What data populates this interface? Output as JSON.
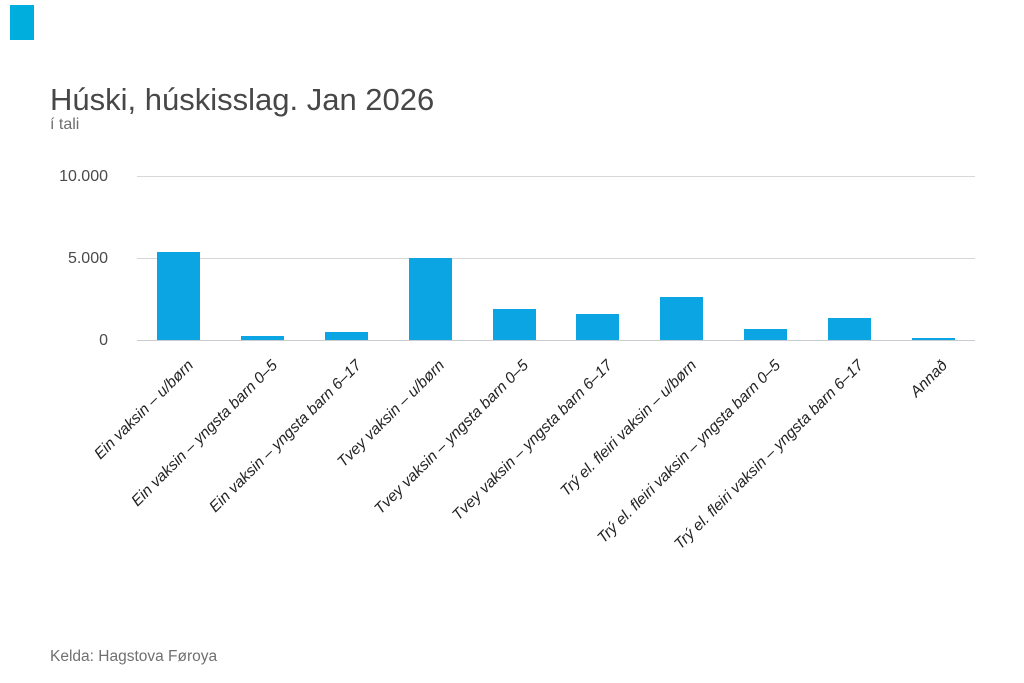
{
  "page": {
    "background": "#ffffff"
  },
  "logo": {
    "color": "#00aedd"
  },
  "chart_data": {
    "type": "bar",
    "title": "Húski, húskisslag. Jan 2026",
    "subtitle": "í tali",
    "source": "Kelda: Hagstova Føroya",
    "categories": [
      "Ein vaksin – u/børn",
      "Ein vaksin – yngsta barn 0–5",
      "Ein vaksin – yngsta barn 6–17",
      "Tvey vaksin – u/børn",
      "Tvey vaksin – yngsta barn 0–5",
      "Tvey vaksin – yngsta barn 6–17",
      "Trý el. fleiri vaksin – u/børn",
      "Trý el. fleiri vaksin – yngsta barn 0–5",
      "Trý el. fleiri vaksin – yngsta barn 6–17",
      "Annað"
    ],
    "values": [
      5400,
      280,
      500,
      5050,
      1950,
      1600,
      2650,
      700,
      1400,
      180
    ],
    "xlabel": "",
    "ylabel": "",
    "ylim": [
      0,
      10000
    ],
    "yticks": [
      {
        "value": 0,
        "label": "0"
      },
      {
        "value": 5000,
        "label": "5.000"
      },
      {
        "value": 10000,
        "label": "10.000"
      }
    ],
    "bar_color": "#0aa5e2",
    "grid": true,
    "legend": false,
    "x_label_rotation": -45
  }
}
